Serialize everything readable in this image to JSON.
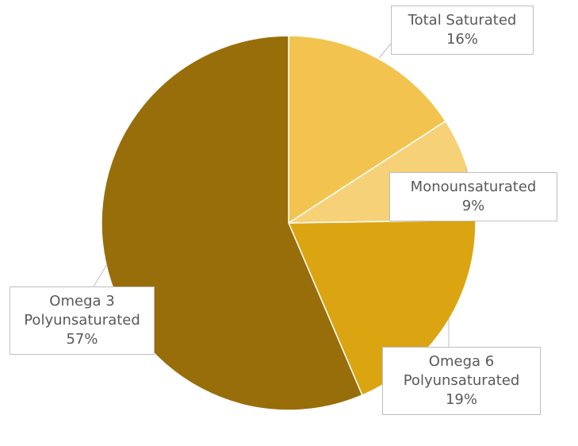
{
  "chart_data": {
    "type": "pie",
    "categories": [
      "Total Saturated",
      "Monounsaturated",
      "Omega 6 Polyunsaturated",
      "Omega 3 Polyunsaturated"
    ],
    "values": [
      16,
      9,
      19,
      57
    ],
    "value_labels": [
      "16%",
      "9%",
      "19%",
      "57%"
    ],
    "colors": [
      "#f2c44f",
      "#f6d177",
      "#dba411",
      "#986e0a"
    ]
  }
}
